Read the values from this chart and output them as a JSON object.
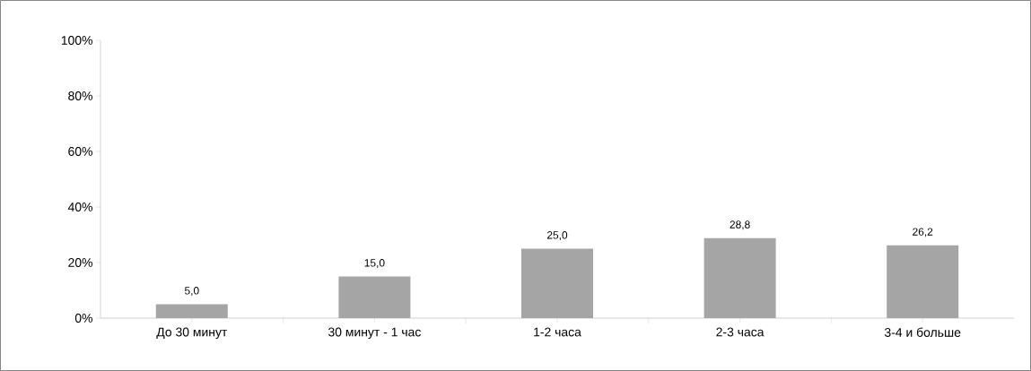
{
  "chart_data": {
    "type": "bar",
    "categories": [
      "До 30 минут",
      "30 минут - 1 час",
      "1-2 часа",
      "2-3 часа",
      "3-4 и больше"
    ],
    "values": [
      5.0,
      15.0,
      25.0,
      28.8,
      26.2
    ],
    "value_labels": [
      "5,0",
      "15,0",
      "25,0",
      "28,8",
      "26,2"
    ],
    "color": "#a5a5a5",
    "ylim": [
      0,
      100
    ],
    "yticks": [
      {
        "value": 0,
        "label": "0%"
      },
      {
        "value": 20,
        "label": "20%"
      },
      {
        "value": 40,
        "label": "40%"
      },
      {
        "value": 60,
        "label": "60%"
      },
      {
        "value": 80,
        "label": "80%"
      },
      {
        "value": 100,
        "label": "100%"
      }
    ]
  }
}
